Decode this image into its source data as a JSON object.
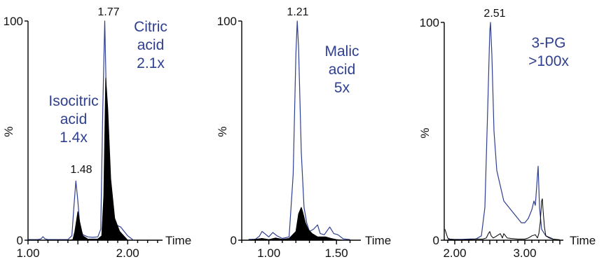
{
  "chart_data": [
    {
      "type": "line",
      "xlabel": "Time",
      "ylabel": "%",
      "xlim": [
        1.0,
        2.35
      ],
      "ylim": [
        0,
        100
      ],
      "x_ticks": [
        1.0,
        2.0
      ],
      "x_tick_labels": [
        "1.00",
        "2.00"
      ],
      "y_ticks": [
        0,
        100
      ],
      "y_tick_labels": [
        "0",
        "100"
      ],
      "peak_labels": [
        {
          "text": "1.77",
          "x": 1.77,
          "y": 100
        },
        {
          "text": "1.48",
          "x": 1.48,
          "y": 27
        }
      ],
      "annotations": [
        {
          "lines": [
            "Citric",
            "acid",
            "2.1x"
          ]
        },
        {
          "lines": [
            "Isocitric",
            "acid",
            "1.4x"
          ]
        }
      ],
      "series": [
        {
          "color": "#2f3f8f",
          "x": [
            1.0,
            1.1,
            1.13,
            1.15,
            1.17,
            1.2,
            1.3,
            1.4,
            1.44,
            1.46,
            1.48,
            1.5,
            1.52,
            1.55,
            1.6,
            1.65,
            1.7,
            1.73,
            1.75,
            1.77,
            1.79,
            1.81,
            1.84,
            1.88,
            1.93,
            2.0,
            2.05
          ],
          "y": [
            0.3,
            0.3,
            0.6,
            1.6,
            0.6,
            0.3,
            0.3,
            0.3,
            2,
            15,
            27,
            18,
            6,
            2.5,
            1.5,
            1.3,
            1.5,
            5,
            60,
            100,
            55,
            22,
            10,
            7,
            6,
            2,
            0.3
          ]
        },
        {
          "color": "#000000",
          "fill": true,
          "x": [
            1.4,
            1.45,
            1.47,
            1.49,
            1.5,
            1.52,
            1.55,
            1.6,
            1.7,
            1.74,
            1.76,
            1.78,
            1.8,
            1.83,
            1.87,
            1.92,
            1.97,
            2.0
          ],
          "y": [
            0,
            0.3,
            4,
            10,
            13,
            8,
            2,
            0.5,
            0.5,
            2,
            20,
            74,
            60,
            28,
            10,
            4,
            1.5,
            0
          ]
        }
      ]
    },
    {
      "type": "line",
      "xlabel": "Time",
      "ylabel": "%",
      "xlim": [
        0.8,
        1.68
      ],
      "ylim": [
        0,
        100
      ],
      "x_ticks": [
        1.0,
        1.5
      ],
      "x_tick_labels": [
        "1.00",
        "1.50"
      ],
      "y_ticks": [
        0,
        100
      ],
      "y_tick_labels": [
        "0",
        "100"
      ],
      "peak_labels": [
        {
          "text": "1.21",
          "x": 1.21,
          "y": 100
        }
      ],
      "annotations": [
        {
          "lines": [
            "Malic",
            "acid",
            "5x"
          ]
        }
      ],
      "series": [
        {
          "color": "#2f3f8f",
          "x": [
            0.85,
            0.9,
            0.93,
            0.95,
            0.98,
            1.0,
            1.03,
            1.06,
            1.1,
            1.15,
            1.18,
            1.2,
            1.21,
            1.22,
            1.24,
            1.26,
            1.28,
            1.3,
            1.33,
            1.36,
            1.38,
            1.41,
            1.45,
            1.48,
            1.51,
            1.55,
            1.6
          ],
          "y": [
            0.4,
            0.4,
            1.8,
            4,
            2.5,
            1.5,
            3.5,
            2,
            0.8,
            1.5,
            30,
            85,
            100,
            88,
            40,
            15,
            8,
            4,
            5,
            7,
            3,
            2.5,
            6,
            3,
            2.5,
            0.6,
            0.3
          ]
        },
        {
          "color": "#000000",
          "fill": true,
          "x": [
            0.85,
            0.95,
            1.0,
            1.05,
            1.1,
            1.15,
            1.2,
            1.22,
            1.24,
            1.25,
            1.27,
            1.29,
            1.32,
            1.36,
            1.42,
            1.46,
            1.5,
            1.55
          ],
          "y": [
            0,
            0.8,
            0.3,
            1,
            0.4,
            0.8,
            4,
            12,
            15,
            13,
            8,
            5,
            3,
            1.5,
            1.5,
            0.8,
            0.3,
            0
          ]
        }
      ]
    },
    {
      "type": "line",
      "xlabel": "Time",
      "ylabel": "%",
      "xlim": [
        1.85,
        3.55
      ],
      "ylim": [
        0,
        100
      ],
      "x_ticks": [
        2.0,
        3.0
      ],
      "x_tick_labels": [
        "2.00",
        "3.00"
      ],
      "y_ticks": [
        0,
        100
      ],
      "y_tick_labels": [
        "0",
        "100"
      ],
      "peak_labels": [
        {
          "text": "2.51",
          "x": 2.51,
          "y": 100
        }
      ],
      "annotations": [
        {
          "lines": [
            "3-PG",
            ">100x"
          ]
        }
      ],
      "series": [
        {
          "color": "#2f3f8f",
          "x": [
            1.9,
            2.0,
            2.1,
            2.2,
            2.3,
            2.38,
            2.43,
            2.47,
            2.5,
            2.51,
            2.53,
            2.56,
            2.6,
            2.65,
            2.7,
            2.8,
            2.9,
            2.95,
            3.0,
            3.05,
            3.1,
            3.13,
            3.15,
            3.17,
            3.19,
            3.21,
            3.24,
            3.3,
            3.4
          ],
          "y": [
            0.4,
            0.4,
            0.4,
            0.5,
            0.5,
            2,
            15,
            60,
            96,
            100,
            85,
            50,
            32,
            25,
            18,
            14,
            10,
            8,
            8,
            10,
            14,
            18,
            16,
            25,
            34,
            15,
            5,
            2,
            0.6
          ]
        },
        {
          "color": "#000000",
          "fill": false,
          "x": [
            1.86,
            1.88,
            1.9,
            1.93,
            2.0,
            2.1,
            2.2,
            2.3,
            2.4,
            2.45,
            2.48,
            2.5,
            2.52,
            2.55,
            2.6,
            2.65,
            2.68,
            2.7,
            2.75,
            2.8,
            2.9,
            3.0,
            3.05,
            3.1,
            3.15,
            3.18,
            3.2,
            3.22,
            3.24,
            3.25,
            3.26,
            3.28,
            3.3,
            3.35,
            3.4,
            3.5
          ],
          "y": [
            5,
            3,
            1,
            0.5,
            0.3,
            0.2,
            0.3,
            0.5,
            0.5,
            1,
            3,
            4,
            2,
            1,
            2,
            3,
            1,
            3,
            1,
            0.8,
            0.5,
            0.5,
            1,
            2,
            2.5,
            1,
            3,
            8,
            18,
            19,
            14,
            6,
            2,
            1,
            0.5,
            0.2
          ]
        }
      ]
    }
  ]
}
